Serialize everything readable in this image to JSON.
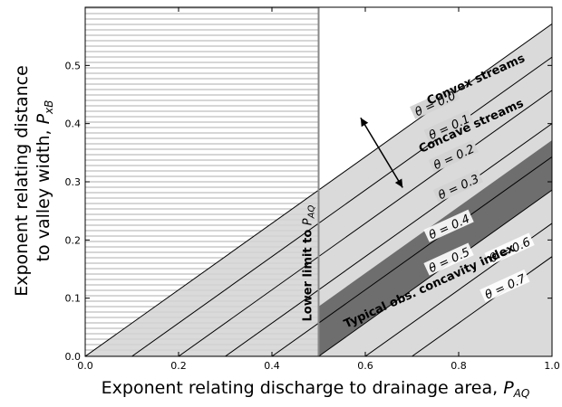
{
  "chart_data": {
    "type": "line",
    "xlabel": "Exponent relating discharge to drainage area, P_AQ",
    "ylabel_line1": "Exponent relating distance",
    "ylabel_line2": "to valley width, P_xB",
    "xlim": [
      0.0,
      1.0
    ],
    "ylim": [
      0.0,
      0.6
    ],
    "xticks": [
      "0.0",
      "0.2",
      "0.4",
      "0.6",
      "0.8",
      "1.0"
    ],
    "yticks": [
      "0.0",
      "0.1",
      "0.2",
      "0.3",
      "0.4",
      "0.5"
    ],
    "regions": {
      "lower_limit_x": 0.5,
      "lower_limit_label": "Lower limit to P_AQ",
      "concave_band_label": "Concave streams",
      "convex_label": "Convex streams",
      "typical_band": {
        "theta_min": 0.35,
        "theta_max": 0.5,
        "label": "Typical obs. concavity index"
      }
    },
    "series": [
      {
        "theta": 0.0,
        "label": "θ = 0.0"
      },
      {
        "theta": 0.1,
        "label": "θ = 0.1"
      },
      {
        "theta": 0.2,
        "label": "θ = 0.2"
      },
      {
        "theta": 0.3,
        "label": "θ = 0.3"
      },
      {
        "theta": 0.4,
        "label": "θ = 0.4"
      },
      {
        "theta": 0.5,
        "label": "θ = 0.5"
      },
      {
        "theta": 0.6,
        "label": "θ = 0.6"
      },
      {
        "theta": 0.7,
        "label": "θ = 0.7"
      }
    ],
    "relation": "y = (x - theta) * 4/7"
  },
  "colors": {
    "hatch": "#9a9a9a",
    "concave_fill": "#d3d3d3",
    "typical_fill": "#6e6e6e",
    "line": "#000000"
  }
}
